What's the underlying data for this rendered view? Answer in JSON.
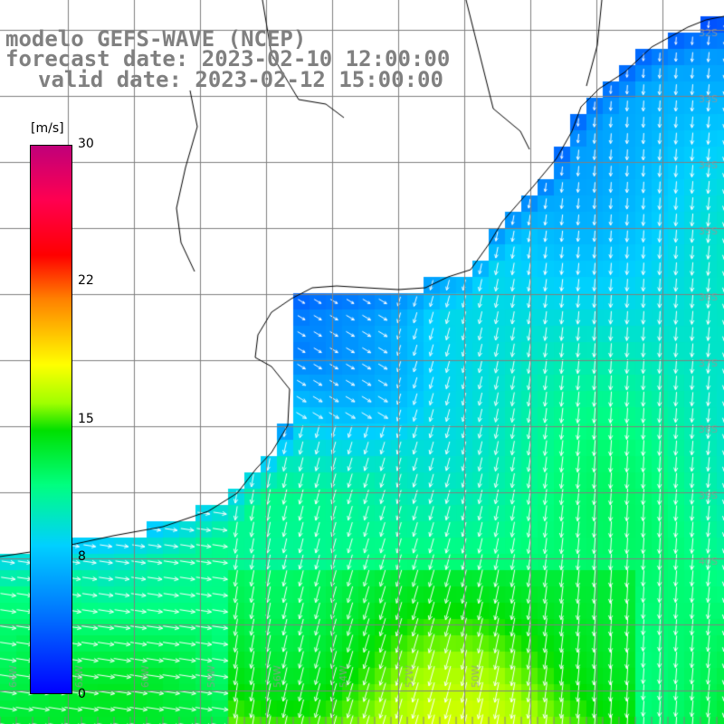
{
  "title": {
    "line1": "modelo GEFS-WAVE (NCEP)",
    "line2": "forecast date: 2023-02-10 12:00:00",
    "line3": "valid date: 2023-02-12 15:00:00"
  },
  "colorbar": {
    "unit": "[m/s]",
    "min": 0,
    "max": 30,
    "tick_labels": [
      "30",
      "22",
      "15",
      "8",
      "0"
    ],
    "tick_values": [
      30,
      22,
      15,
      8,
      0
    ],
    "stops": [
      "#0000ff",
      "#0070ff",
      "#00d0ff",
      "#00ff80",
      "#00e000",
      "#a0ff00",
      "#ffff00",
      "#ff8000",
      "#ff0000",
      "#ff0050",
      "#c0007a"
    ]
  },
  "map": {
    "lon_labels": [
      "64W",
      "62W",
      "60W",
      "58W",
      "56W",
      "54W",
      "52W",
      "50W"
    ],
    "lat_labels": [
      "32S",
      "33S",
      "34S",
      "35S",
      "36S",
      "37S",
      "38S",
      "39S",
      "40S"
    ],
    "land_color": "#ffffff",
    "grid_color": "#808080",
    "coast_color": "#000000",
    "arrow_color": "#ffffff"
  }
}
